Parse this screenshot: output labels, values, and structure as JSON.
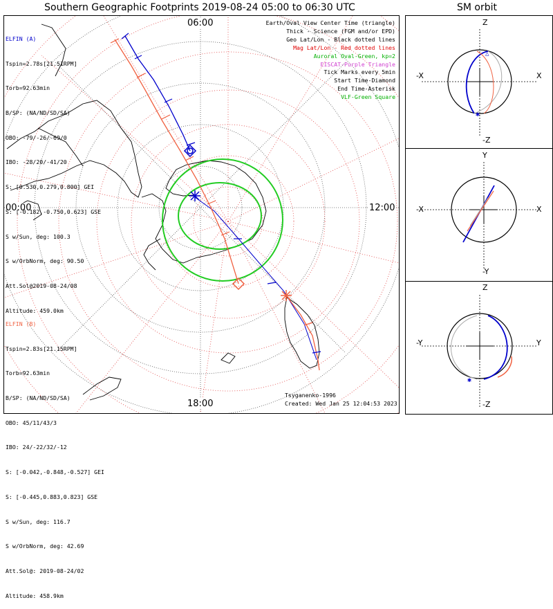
{
  "title": "Southern Geographic Footprints 2019-08-24 05:00 to 06:30 UTC",
  "orbit_title": "SM orbit",
  "clock_labels": {
    "top": "06:00",
    "left": "00:00",
    "right": "12:00",
    "bottom": "18:00"
  },
  "elfin_a": {
    "header": "ELFIN (A)",
    "lines": [
      "Tspin=2.78s[21.51RPM]",
      "Torb=92.63min",
      "B/SP: (NA/ND/SD/SA)",
      "OBO: -79/-26/-69/0",
      "IBO: -28/20/-41/20",
      "S: [0.530,0.279,0.800] GEI",
      "S: [-0.182,-0.750,0.623] GSE",
      "S w/Sun, deg: 100.3",
      "S w/OrbNorm, deg: 90.50",
      "Att.Sol@2019-08-24/08",
      "Altitude: 459.0km"
    ]
  },
  "elfin_b": {
    "header": "ELFIN (B)",
    "lines": [
      "Tspin=2.83s[21.15RPM]",
      "Torb=92.63min",
      "B/SP: (NA/ND/SD/SA)",
      "OBO: 45/11/43/3",
      "IBO: 24/-22/32/-12",
      "S: [-0.042,-0.848,-0.527] GEI",
      "S: [-0.445,0.883,0.823] GSE",
      "S w/Sun, deg: 116.7",
      "S w/OrbNorm, deg: 42.69",
      "Att.Sol@: 2019-08-24/02",
      "Altitude: 458.9km"
    ]
  },
  "legend": [
    {
      "text": "Earth/Oval View Center Time (triangle)",
      "color": "#000000"
    },
    {
      "text": "Thick - Science (FGM and/or EPD)",
      "color": "#000000"
    },
    {
      "text": "Geo Lat/Lon - Black dotted lines",
      "color": "#000000"
    },
    {
      "text": "Mag Lat/Lon - Red dotted lines",
      "color": "#e00000"
    },
    {
      "text": "Auroral Oval-Green, kp=2",
      "color": "#00b000"
    },
    {
      "text": "EISCAT-Purple Triangle",
      "color": "#d040d0"
    },
    {
      "text": "Tick Marks every 5min",
      "color": "#000000"
    },
    {
      "text": "Start Time-Diamond",
      "color": "#000000"
    },
    {
      "text": "End Time-Asterisk",
      "color": "#000000"
    },
    {
      "text": "VLF-Green Square",
      "color": "#00b000"
    }
  ],
  "footer": {
    "credit": "Tsyganenko-1996",
    "created": "Created: Wed Jan 25 12:04:53 2023"
  },
  "orbit_panels": [
    {
      "top": "Z",
      "bottom": "-Z",
      "left": "-X",
      "right": "X"
    },
    {
      "top": "Y",
      "bottom": "-Y",
      "left": "-X",
      "right": "X"
    },
    {
      "top": "Z",
      "bottom": "-Z",
      "left": "-Y",
      "right": "Y"
    }
  ],
  "colors": {
    "elfin_a": "#0000cc",
    "elfin_b": "#f06040",
    "oval": "#22cc22",
    "mag_grid": "#e04040"
  }
}
